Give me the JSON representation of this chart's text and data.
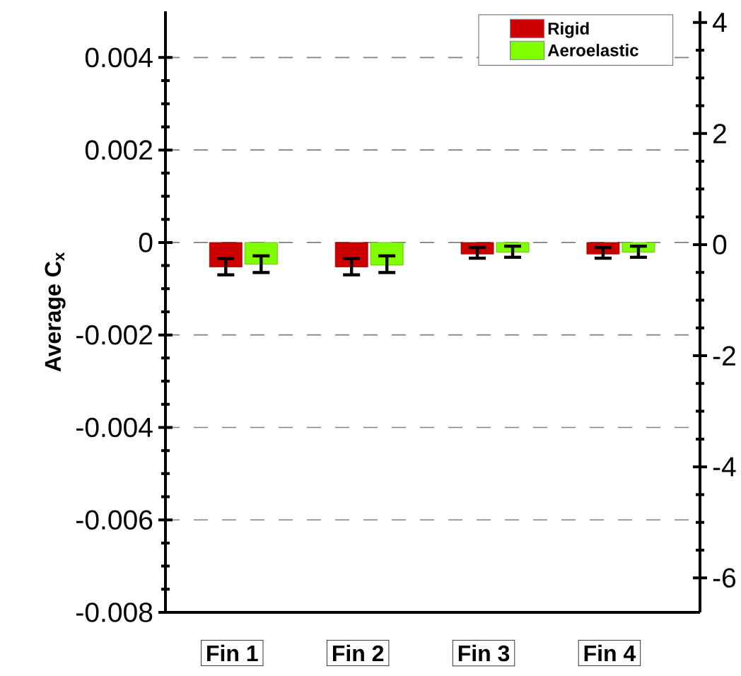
{
  "chart_data": {
    "type": "bar",
    "ylabel": "Average C$_{x}$",
    "categories": [
      "Fin 1",
      "Fin 2",
      "Fin 3",
      "Fin 4"
    ],
    "series": [
      {
        "name": "Rigid",
        "color": "#cc0000",
        "values": [
          -0.00053,
          -0.00053,
          -0.00025,
          -0.00025
        ],
        "errors": [
          [
            -0.0007,
            -0.00035
          ],
          [
            -0.0007,
            -0.00035
          ],
          [
            -0.00034,
            -0.00011
          ],
          [
            -0.00034,
            -0.00011
          ]
        ]
      },
      {
        "name": "Aeroelastic",
        "color": "#80ff00",
        "values": [
          -0.00047,
          -0.00049,
          -0.00021,
          -0.00021
        ],
        "errors": [
          [
            -0.00065,
            -0.00029
          ],
          [
            -0.00065,
            -0.00029
          ],
          [
            -0.00032,
            -8e-05
          ],
          [
            -0.00032,
            -8e-05
          ]
        ]
      }
    ],
    "ylim": [
      -0.008,
      0.005
    ],
    "yticks": [
      -0.008,
      -0.006,
      -0.004,
      -0.002,
      0,
      0.002,
      0.004
    ],
    "y2lim": [
      -6.62,
      4.2
    ],
    "y2ticks": [
      -6,
      -4,
      -2,
      0,
      2,
      4
    ],
    "grid": "y",
    "legend": "top right"
  }
}
